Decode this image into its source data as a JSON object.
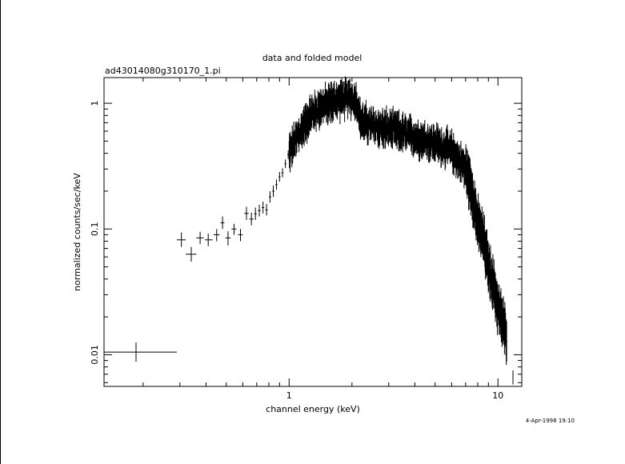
{
  "chart_data": {
    "type": "scatter",
    "title": "data and folded model",
    "subtitle": "ad43014080g310170_1.pi",
    "xlabel": "channel energy (keV)",
    "ylabel": "normalized counts/sec/keV",
    "timestamp": "4-Apr-1998 19:10",
    "xscale": "log",
    "yscale": "log",
    "xlim": [
      0.13,
      13.0
    ],
    "ylim": [
      0.0056,
      1.6
    ],
    "x_ticks": [
      {
        "value": 1,
        "label": "1"
      },
      {
        "value": 10,
        "label": "10"
      }
    ],
    "y_ticks": [
      {
        "value": 0.01,
        "label": "0.01"
      },
      {
        "value": 0.1,
        "label": "0.1"
      },
      {
        "value": 1,
        "label": "1"
      }
    ],
    "grid": false,
    "legend": "none",
    "points": [
      {
        "x": 0.185,
        "y": 0.0105,
        "xlo": 0.13,
        "xhi": 0.29,
        "ylo": 0.0088,
        "yhi": 0.0125
      },
      {
        "x": 0.305,
        "y": 0.082,
        "xlo": 0.29,
        "xhi": 0.32,
        "ylo": 0.072,
        "yhi": 0.094
      },
      {
        "x": 0.34,
        "y": 0.063,
        "xlo": 0.32,
        "xhi": 0.36,
        "ylo": 0.055,
        "yhi": 0.072
      },
      {
        "x": 0.375,
        "y": 0.085,
        "xlo": 0.36,
        "xhi": 0.39,
        "ylo": 0.076,
        "yhi": 0.095
      },
      {
        "x": 0.41,
        "y": 0.082,
        "xlo": 0.395,
        "xhi": 0.43,
        "ylo": 0.073,
        "yhi": 0.092
      },
      {
        "x": 0.45,
        "y": 0.09,
        "xlo": 0.435,
        "xhi": 0.465,
        "ylo": 0.08,
        "yhi": 0.1
      },
      {
        "x": 0.48,
        "y": 0.112,
        "xlo": 0.47,
        "xhi": 0.49,
        "ylo": 0.1,
        "yhi": 0.126
      },
      {
        "x": 0.51,
        "y": 0.085,
        "xlo": 0.495,
        "xhi": 0.525,
        "ylo": 0.074,
        "yhi": 0.096
      },
      {
        "x": 0.545,
        "y": 0.1,
        "xlo": 0.53,
        "xhi": 0.56,
        "ylo": 0.09,
        "yhi": 0.11
      },
      {
        "x": 0.585,
        "y": 0.09,
        "xlo": 0.57,
        "xhi": 0.6,
        "ylo": 0.08,
        "yhi": 0.1
      },
      {
        "x": 0.625,
        "y": 0.133,
        "xlo": 0.61,
        "xhi": 0.64,
        "ylo": 0.118,
        "yhi": 0.15
      },
      {
        "x": 0.66,
        "y": 0.12,
        "xlo": 0.645,
        "xhi": 0.675,
        "ylo": 0.107,
        "yhi": 0.135
      },
      {
        "x": 0.69,
        "y": 0.132,
        "xlo": 0.68,
        "xhi": 0.7,
        "ylo": 0.118,
        "yhi": 0.148
      },
      {
        "x": 0.72,
        "y": 0.14,
        "xlo": 0.71,
        "xhi": 0.73,
        "ylo": 0.126,
        "yhi": 0.156
      },
      {
        "x": 0.75,
        "y": 0.148,
        "xlo": 0.74,
        "xhi": 0.76,
        "ylo": 0.133,
        "yhi": 0.165
      },
      {
        "x": 0.78,
        "y": 0.142,
        "xlo": 0.77,
        "xhi": 0.79,
        "ylo": 0.128,
        "yhi": 0.158
      },
      {
        "x": 0.81,
        "y": 0.18,
        "xlo": 0.8,
        "xhi": 0.82,
        "ylo": 0.162,
        "yhi": 0.2
      },
      {
        "x": 0.84,
        "y": 0.2,
        "xlo": 0.83,
        "xhi": 0.85,
        "ylo": 0.18,
        "yhi": 0.222
      },
      {
        "x": 0.87,
        "y": 0.225,
        "xlo": 0.86,
        "xhi": 0.88,
        "ylo": 0.205,
        "yhi": 0.248
      },
      {
        "x": 0.9,
        "y": 0.26,
        "xlo": 0.89,
        "xhi": 0.91,
        "ylo": 0.238,
        "yhi": 0.284
      },
      {
        "x": 0.93,
        "y": 0.28,
        "xlo": 0.92,
        "xhi": 0.94,
        "ylo": 0.258,
        "yhi": 0.304
      },
      {
        "x": 0.96,
        "y": 0.33,
        "xlo": 0.95,
        "xhi": 0.97,
        "ylo": 0.305,
        "yhi": 0.357
      },
      {
        "x": 0.99,
        "y": 0.39,
        "xlo": 0.98,
        "xhi": 1.0,
        "ylo": 0.362,
        "yhi": 0.42
      }
    ],
    "dense_band": {
      "x_start": 1.0,
      "x_end": 11.0,
      "median": [
        [
          1.0,
          0.4
        ],
        [
          1.1,
          0.55
        ],
        [
          1.2,
          0.7
        ],
        [
          1.3,
          0.85
        ],
        [
          1.45,
          0.95
        ],
        [
          1.6,
          1.02
        ],
        [
          1.8,
          1.08
        ],
        [
          2.0,
          1.1
        ],
        [
          2.1,
          1.05
        ],
        [
          2.2,
          0.72
        ],
        [
          2.5,
          0.66
        ],
        [
          3.0,
          0.62
        ],
        [
          3.5,
          0.58
        ],
        [
          4.0,
          0.54
        ],
        [
          5.0,
          0.48
        ],
        [
          6.0,
          0.42
        ],
        [
          7.0,
          0.3
        ],
        [
          7.5,
          0.2
        ],
        [
          8.0,
          0.11
        ],
        [
          8.5,
          0.085
        ],
        [
          9.0,
          0.05
        ],
        [
          9.5,
          0.036
        ],
        [
          10.0,
          0.024
        ],
        [
          10.5,
          0.018
        ],
        [
          11.0,
          0.014
        ]
      ]
    }
  },
  "points_last": {
    "x": 11.8,
    "y": 0.0065,
    "ylo": 0.0058,
    "yhi": 0.0075
  }
}
